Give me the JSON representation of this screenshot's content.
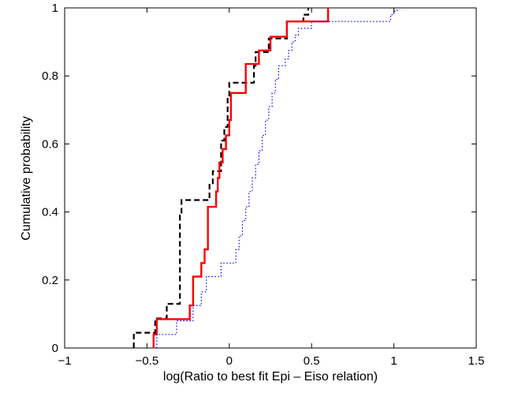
{
  "chart_data": {
    "type": "line",
    "title": "",
    "xlabel": "log(Ratio to best fit Epi – Eiso relation)",
    "ylabel": "Cumulative probability",
    "xlim": [
      -1,
      1.5
    ],
    "ylim": [
      0,
      1
    ],
    "xticks": [
      -1,
      -0.5,
      0,
      0.5,
      1,
      1.5
    ],
    "xtick_labels": [
      "−1",
      "−0.5",
      "0",
      "0.5",
      "1",
      "1.5"
    ],
    "yticks": [
      0,
      0.2,
      0.4,
      0.6,
      0.8,
      1
    ],
    "ytick_labels": [
      "0",
      "0.2",
      "0.4",
      "0.6",
      "0.8",
      "1"
    ],
    "grid": false,
    "legend": "none",
    "series": [
      {
        "style": "dashed",
        "color": "#000000",
        "steps_x": [
          -0.58,
          -0.45,
          -0.38,
          -0.3,
          -0.29,
          -0.12,
          -0.1,
          -0.05,
          -0.03,
          -0.01,
          0.0,
          0.15,
          0.16,
          0.24,
          0.35,
          0.38,
          0.45,
          0.48
        ],
        "steps_y": [
          0.045,
          0.087,
          0.13,
          0.39,
          0.435,
          0.48,
          0.52,
          0.61,
          0.65,
          0.74,
          0.78,
          0.83,
          0.87,
          0.91,
          0.96,
          0.96,
          0.98,
          1.0
        ]
      },
      {
        "style": "solid",
        "color": "#ff0000",
        "steps_x": [
          -0.46,
          -0.44,
          -0.24,
          -0.22,
          -0.17,
          -0.15,
          -0.13,
          -0.08,
          -0.07,
          -0.06,
          -0.04,
          -0.02,
          0.0,
          0.01,
          0.1,
          0.15,
          0.18,
          0.25,
          0.35,
          0.6
        ],
        "steps_y": [
          0.04,
          0.085,
          0.125,
          0.21,
          0.25,
          0.29,
          0.415,
          0.46,
          0.5,
          0.545,
          0.585,
          0.625,
          0.67,
          0.75,
          0.835,
          0.835,
          0.875,
          0.915,
          0.96,
          1.0
        ]
      },
      {
        "style": "dotted",
        "color": "#0000ff",
        "steps_x": [
          -0.44,
          -0.32,
          -0.22,
          -0.17,
          -0.14,
          -0.05,
          0.02,
          0.04,
          0.06,
          0.08,
          0.1,
          0.12,
          0.14,
          0.16,
          0.18,
          0.2,
          0.22,
          0.24,
          0.26,
          0.28,
          0.3,
          0.32,
          0.34,
          0.36,
          0.38,
          0.4,
          0.42,
          0.5,
          0.52,
          0.98,
          1.0,
          1.02
        ],
        "steps_y": [
          0.04,
          0.08,
          0.125,
          0.165,
          0.21,
          0.25,
          0.25,
          0.29,
          0.33,
          0.375,
          0.415,
          0.46,
          0.5,
          0.54,
          0.58,
          0.625,
          0.67,
          0.71,
          0.75,
          0.79,
          0.83,
          0.83,
          0.85,
          0.875,
          0.9,
          0.92,
          0.94,
          0.96,
          0.96,
          0.98,
          0.99,
          1.0
        ]
      }
    ]
  }
}
